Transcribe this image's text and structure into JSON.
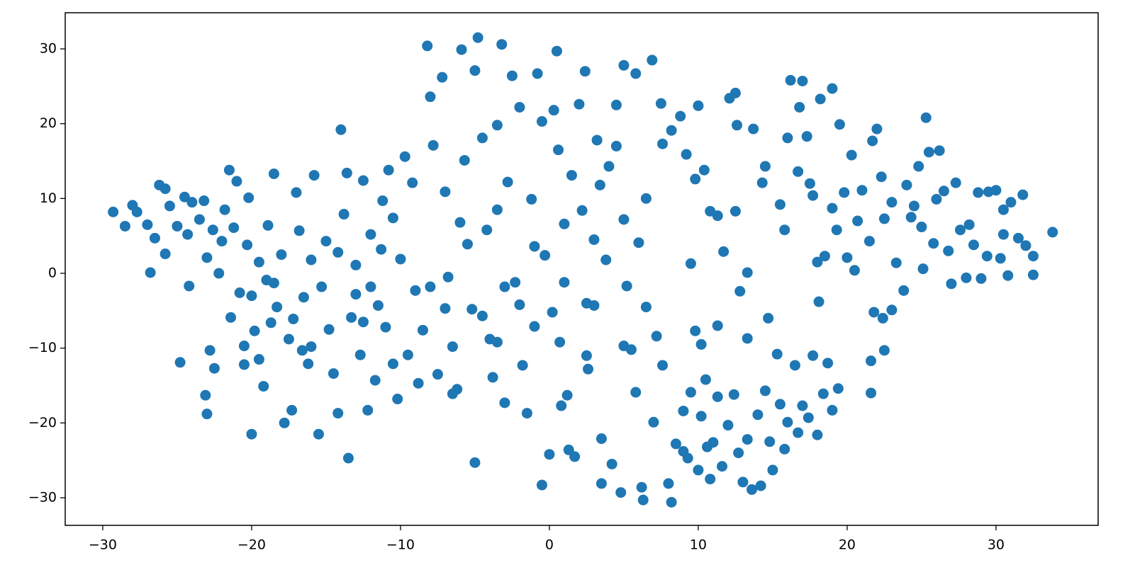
{
  "chart_data": {
    "type": "scatter",
    "color": "#1f77b4",
    "xlim": [
      -32.52,
      36.86
    ],
    "ylim": [
      -33.69,
      34.83
    ],
    "xticks": [
      {
        "value": -30,
        "label": "−30"
      },
      {
        "value": -20,
        "label": "−20"
      },
      {
        "value": -10,
        "label": "−10"
      },
      0,
      10,
      20,
      30
    ],
    "yticks": [
      {
        "value": -30,
        "label": "−30"
      },
      {
        "value": -20,
        "label": "−20"
      },
      {
        "value": -10,
        "label": "−10"
      },
      0,
      10,
      20,
      30
    ],
    "x": [
      -29.3,
      -28.5,
      -28,
      -27.7,
      -27,
      -26.5,
      -26.8,
      -26.2,
      -25.8,
      -25.5,
      -25.8,
      -24.5,
      -24,
      -25,
      -24.3,
      -24.8,
      -24.2,
      -23.5,
      -23.2,
      -23,
      -22.8,
      -23.1,
      -23,
      -22.5,
      -22.2,
      -22,
      -21.8,
      -21.5,
      -21.2,
      -21,
      -20.5,
      -20.2,
      -20,
      -20.3,
      -20,
      -19.8,
      -19.5,
      -19.2,
      -18.9,
      -18.5,
      -18.3,
      -18,
      -17.8,
      -17.5,
      -17.3,
      -17,
      -16.8,
      -16.5,
      -16.2,
      -16,
      -15.8,
      -15.5,
      -15.3,
      -15,
      -14.8,
      -14.5,
      -14.2,
      -14,
      -13.8,
      -13.5,
      -13.3,
      -13,
      -12.7,
      -12.5,
      -12.2,
      -12,
      -11.7,
      -11.5,
      -11.2,
      -11,
      -10.8,
      -10.5,
      -10.2,
      -10,
      -19.5,
      -18.7,
      -20.8,
      -19,
      -17.2,
      -16.6,
      -22.6,
      -21.4,
      -20.5,
      -18.5,
      -16,
      -14.2,
      -13,
      -12,
      -11.3,
      -10.5,
      -13.6,
      -12.5,
      -9.7,
      -9.5,
      -9.2,
      -9,
      -8.5,
      -8.2,
      -8,
      -7.8,
      -7.5,
      -7.2,
      -7,
      -6.8,
      -6.5,
      -6.2,
      -5.9,
      -5.7,
      -5.5,
      -5.2,
      -5,
      -4.8,
      -4.5,
      -4.2,
      -4,
      -3.8,
      -3.5,
      -3.2,
      -3,
      -2.8,
      -2.5,
      -2.3,
      -2,
      -1.8,
      -1.5,
      -1.2,
      -1,
      -0.8,
      -0.5,
      -0.3,
      0,
      0.3,
      0.5,
      0.6,
      0.8,
      1,
      1.2,
      1.3,
      1.5,
      1.7,
      2,
      2.2,
      2.4,
      2.5,
      2.6,
      3,
      3.2,
      3.5,
      3.5,
      3.8,
      4,
      4.2,
      4.5,
      4.8,
      5,
      5,
      5.2,
      5.5,
      5.8,
      5.8,
      6,
      6.2,
      6.3,
      6.5,
      6.5,
      6.9,
      7,
      7.2,
      7.5,
      7.6,
      8,
      8.2,
      -6,
      -3,
      -1,
      1,
      3,
      -7,
      -4.5,
      -2,
      -8,
      2.5,
      0.2,
      5,
      7.6,
      4.5,
      3.4,
      -0.5,
      -5,
      -3.5,
      0.7,
      -8.8,
      -6.5,
      -3.5,
      8.5,
      9,
      9.3,
      9.5,
      10,
      10.2,
      10.5,
      10.8,
      11,
      11.3,
      11.6,
      12,
      12.4,
      12.7,
      13,
      13.3,
      13.6,
      14,
      14.2,
      14.5,
      14.8,
      15,
      15.3,
      15.5,
      15.8,
      16,
      16.5,
      16.7,
      17,
      17.4,
      17.7,
      18,
      18.4,
      18.7,
      19,
      19.4,
      9.8,
      10.2,
      11.3,
      12.8,
      13.3,
      14.7,
      9,
      10.6,
      8.2,
      8.8,
      9.2,
      9.5,
      9.8,
      10,
      10.4,
      10.8,
      11.3,
      11.7,
      12.1,
      12.5,
      12.5,
      12.6,
      13.3,
      13.7,
      14.3,
      14.5,
      15.5,
      15.8,
      16,
      16.2,
      16.7,
      16.8,
      17,
      17.3,
      17.5,
      17.7,
      18,
      18.1,
      18.2,
      18.5,
      19,
      19.3,
      19.5,
      19.8,
      20,
      20.3,
      20.5,
      21,
      21.5,
      21.7,
      21.8,
      21.6,
      21.6,
      22,
      22.3,
      22.5,
      22.4,
      23,
      23.3,
      23.8,
      24,
      24.3,
      24.8,
      25.1,
      25.3,
      25.5,
      25.8,
      26.2,
      26.5,
      26.8,
      27,
      27.3,
      27.6,
      28,
      28.5,
      28.8,
      29,
      29.5,
      30,
      30.3,
      30.5,
      30.5,
      30.8,
      31,
      31.5,
      31.8,
      32,
      32.5,
      32.5,
      33.8,
      23,
      24.5,
      26,
      22.5,
      28.2,
      20.7,
      19,
      25,
      29.4
    ],
    "values": [
      8.2,
      6.3,
      9.1,
      8.2,
      6.5,
      4.7,
      0.1,
      11.8,
      11.3,
      9,
      2.6,
      10.2,
      9.5,
      6.3,
      5.2,
      -11.9,
      -1.7,
      7.2,
      9.7,
      2.1,
      -10.3,
      -16.3,
      -18.8,
      -12.7,
      0,
      4.3,
      8.5,
      13.8,
      6.1,
      12.3,
      -9.7,
      10.1,
      -21.5,
      3.8,
      -3,
      -7.7,
      1.5,
      -15.1,
      6.4,
      13.3,
      -4.5,
      2.5,
      -20,
      -8.8,
      -18.3,
      10.8,
      5.7,
      -3.2,
      -12.1,
      -9.8,
      13.1,
      -21.5,
      -1.8,
      4.3,
      -7.5,
      -13.4,
      -18.7,
      19.2,
      7.9,
      -24.7,
      -5.9,
      1.1,
      -10.9,
      12.4,
      -18.3,
      5.2,
      -14.3,
      -4.3,
      9.7,
      -7.2,
      13.8,
      -12.1,
      -16.8,
      1.9,
      -11.5,
      -6.6,
      -2.6,
      -0.9,
      -6.1,
      -10.3,
      5.8,
      -5.9,
      -12.2,
      -1.3,
      1.8,
      2.8,
      -2.8,
      -1.8,
      3.2,
      7.4,
      13.4,
      -6.5,
      15.6,
      -10.9,
      12.1,
      -2.3,
      -7.6,
      30.4,
      23.6,
      17.1,
      -13.5,
      26.2,
      10.9,
      -0.5,
      -9.8,
      -15.5,
      29.9,
      15.1,
      3.9,
      -4.8,
      -25.3,
      31.5,
      18.1,
      5.8,
      -8.8,
      -13.9,
      19.8,
      30.6,
      -17.3,
      12.2,
      26.4,
      -1.2,
      22.2,
      -12.3,
      -18.7,
      9.9,
      -7.1,
      26.7,
      -28.3,
      2.4,
      -24.2,
      21.8,
      29.7,
      16.5,
      -17.7,
      -1.2,
      -16.3,
      -23.6,
      13.1,
      -24.5,
      22.6,
      8.4,
      27,
      -11,
      -12.8,
      -4.3,
      17.8,
      -22.1,
      -28.1,
      1.8,
      14.3,
      -25.5,
      22.5,
      -29.3,
      -9.7,
      27.8,
      -1.7,
      -10.2,
      26.7,
      -15.9,
      4.1,
      -28.6,
      -30.3,
      10,
      -4.5,
      28.5,
      -19.9,
      -8.4,
      22.7,
      -12.3,
      -28.1,
      -30.6,
      6.8,
      -1.8,
      3.6,
      6.6,
      4.5,
      -4.7,
      -5.7,
      -4.2,
      -1.8,
      -4,
      -5.2,
      7.2,
      17.3,
      17,
      11.8,
      20.3,
      27.1,
      8.5,
      -9.2,
      -14.7,
      -16.1,
      -9.2,
      -22.8,
      -18.4,
      -24.7,
      -15.9,
      -26.3,
      -19.1,
      -14.2,
      -27.5,
      -22.6,
      -16.5,
      -25.8,
      -20.3,
      -16.2,
      -24,
      -27.9,
      -22.2,
      -28.9,
      -18.9,
      -28.4,
      -15.7,
      -22.5,
      -26.3,
      -10.8,
      -17.5,
      -23.5,
      -19.9,
      -12.3,
      -21.3,
      -17.7,
      -19.3,
      -11,
      -21.6,
      -16.1,
      -12,
      -18.3,
      -15.4,
      -7.7,
      -9.5,
      -7,
      -2.4,
      -8.7,
      -6,
      -23.8,
      -23.2,
      19.1,
      21,
      15.9,
      1.3,
      12.6,
      22.4,
      13.8,
      8.3,
      7.7,
      2.9,
      23.4,
      24.1,
      8.3,
      19.8,
      0.1,
      19.3,
      12.1,
      14.3,
      9.2,
      5.8,
      18.1,
      25.8,
      13.6,
      22.2,
      25.7,
      18.3,
      12,
      10.4,
      1.5,
      -3.8,
      23.3,
      2.3,
      24.7,
      5.8,
      19.9,
      10.8,
      2.1,
      15.8,
      0.4,
      11.1,
      4.3,
      17.7,
      -5.2,
      -11.7,
      -16,
      19.3,
      12.9,
      -10.3,
      -6,
      -4.9,
      1.4,
      -2.3,
      11.8,
      7.5,
      14.3,
      0.6,
      20.8,
      16.2,
      4,
      16.4,
      11,
      3,
      -1.4,
      12.1,
      5.8,
      -0.6,
      3.8,
      10.8,
      -0.7,
      10.9,
      11.1,
      2,
      5.2,
      8.5,
      -0.3,
      9.5,
      4.7,
      10.5,
      3.7,
      2.3,
      -0.2,
      5.5,
      9.5,
      9,
      9.9,
      7.3,
      6.5,
      7,
      8.7,
      6.2,
      2.3
    ]
  }
}
